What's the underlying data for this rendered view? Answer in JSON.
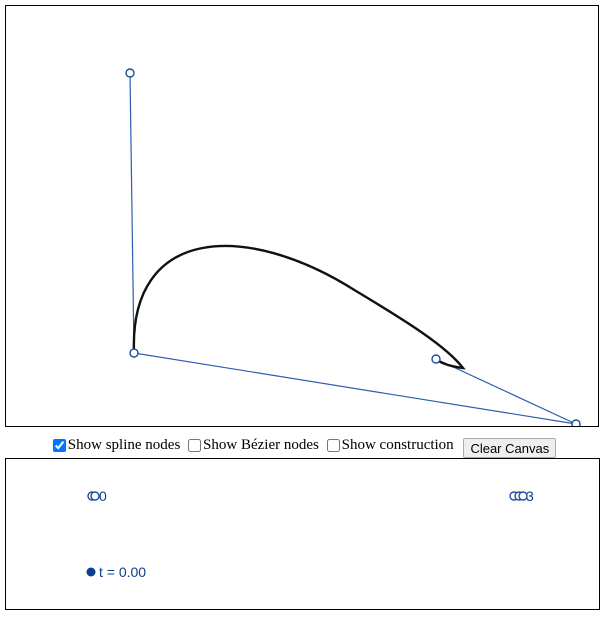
{
  "controls": {
    "show_spline_nodes": {
      "label": "Show spline nodes",
      "checked": true
    },
    "show_bezier_nodes": {
      "label": "Show Bézier nodes",
      "checked": false
    },
    "show_construction": {
      "label": "Show construction",
      "checked": false
    },
    "clear_button_label": "Clear Canvas"
  },
  "parameter": {
    "label": "t = 0.00",
    "value": 0.0
  },
  "parameter_node_labels": {
    "left": "0",
    "right": "3"
  },
  "colors": {
    "curve": "#111111",
    "control_polygon": "#2a5db0",
    "nodes": "#1f4e9c",
    "text": "#0c3f8e"
  }
}
